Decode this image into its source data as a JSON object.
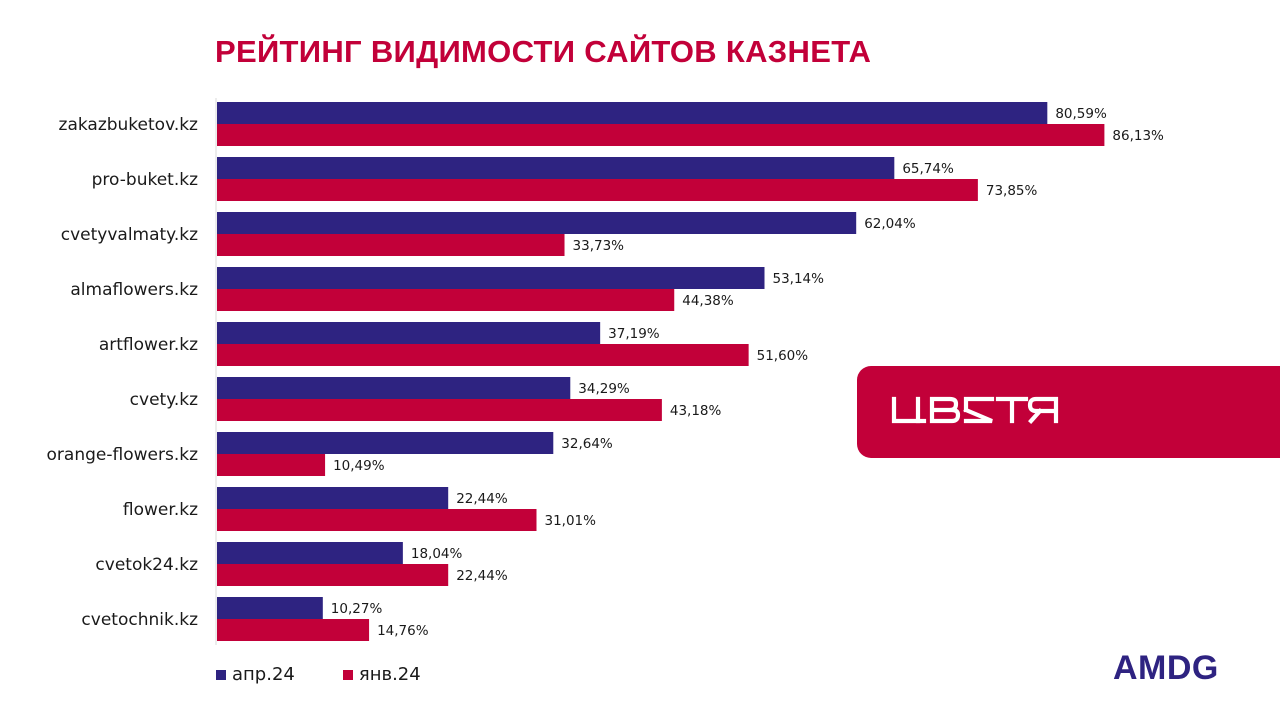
{
  "title": "РЕЙТИНГ ВИДИМОСТИ САЙТОВ КАЗНЕТА",
  "brand": {
    "name": "ЦВЕТЫ",
    "bg_color": "#c20039"
  },
  "logo": "AMDG",
  "colors": {
    "accent": "#c20039",
    "navy": "#2e2381"
  },
  "chart_data": {
    "type": "bar",
    "orientation": "horizontal",
    "title": "РЕЙТИНГ ВИДИМОСТИ САЙТОВ КАЗНЕТА",
    "categories": [
      "zakazbuketov.kz",
      "pro-buket.kz",
      "cvetyvalmaty.kz",
      "almaflowers.kz",
      "artflower.kz",
      "cvety.kz",
      "orange-flowers.kz",
      "flower.kz",
      "cvetok24.kz",
      "cvetochnik.kz"
    ],
    "series": [
      {
        "name": "апр.24",
        "color": "#2e2381",
        "values": [
          80.59,
          65.74,
          62.04,
          53.14,
          37.19,
          34.29,
          32.64,
          22.44,
          18.04,
          10.27
        ],
        "labels": [
          "80,59%",
          "65,74%",
          "62,04%",
          "53,14%",
          "37,19%",
          "34,29%",
          "32,64%",
          "22,44%",
          "18,04%",
          "10,27%"
        ]
      },
      {
        "name": "янв.24",
        "color": "#c20039",
        "values": [
          86.13,
          73.85,
          33.73,
          44.38,
          51.6,
          43.18,
          10.49,
          31.01,
          22.44,
          14.76
        ],
        "labels": [
          "86,13%",
          "73,85%",
          "33,73%",
          "44,38%",
          "51,60%",
          "43,18%",
          "10,49%",
          "31,01%",
          "22,44%",
          "14,76%"
        ]
      }
    ],
    "xlim": [
      0,
      100
    ],
    "grid": false,
    "legend": "bottom-left"
  }
}
